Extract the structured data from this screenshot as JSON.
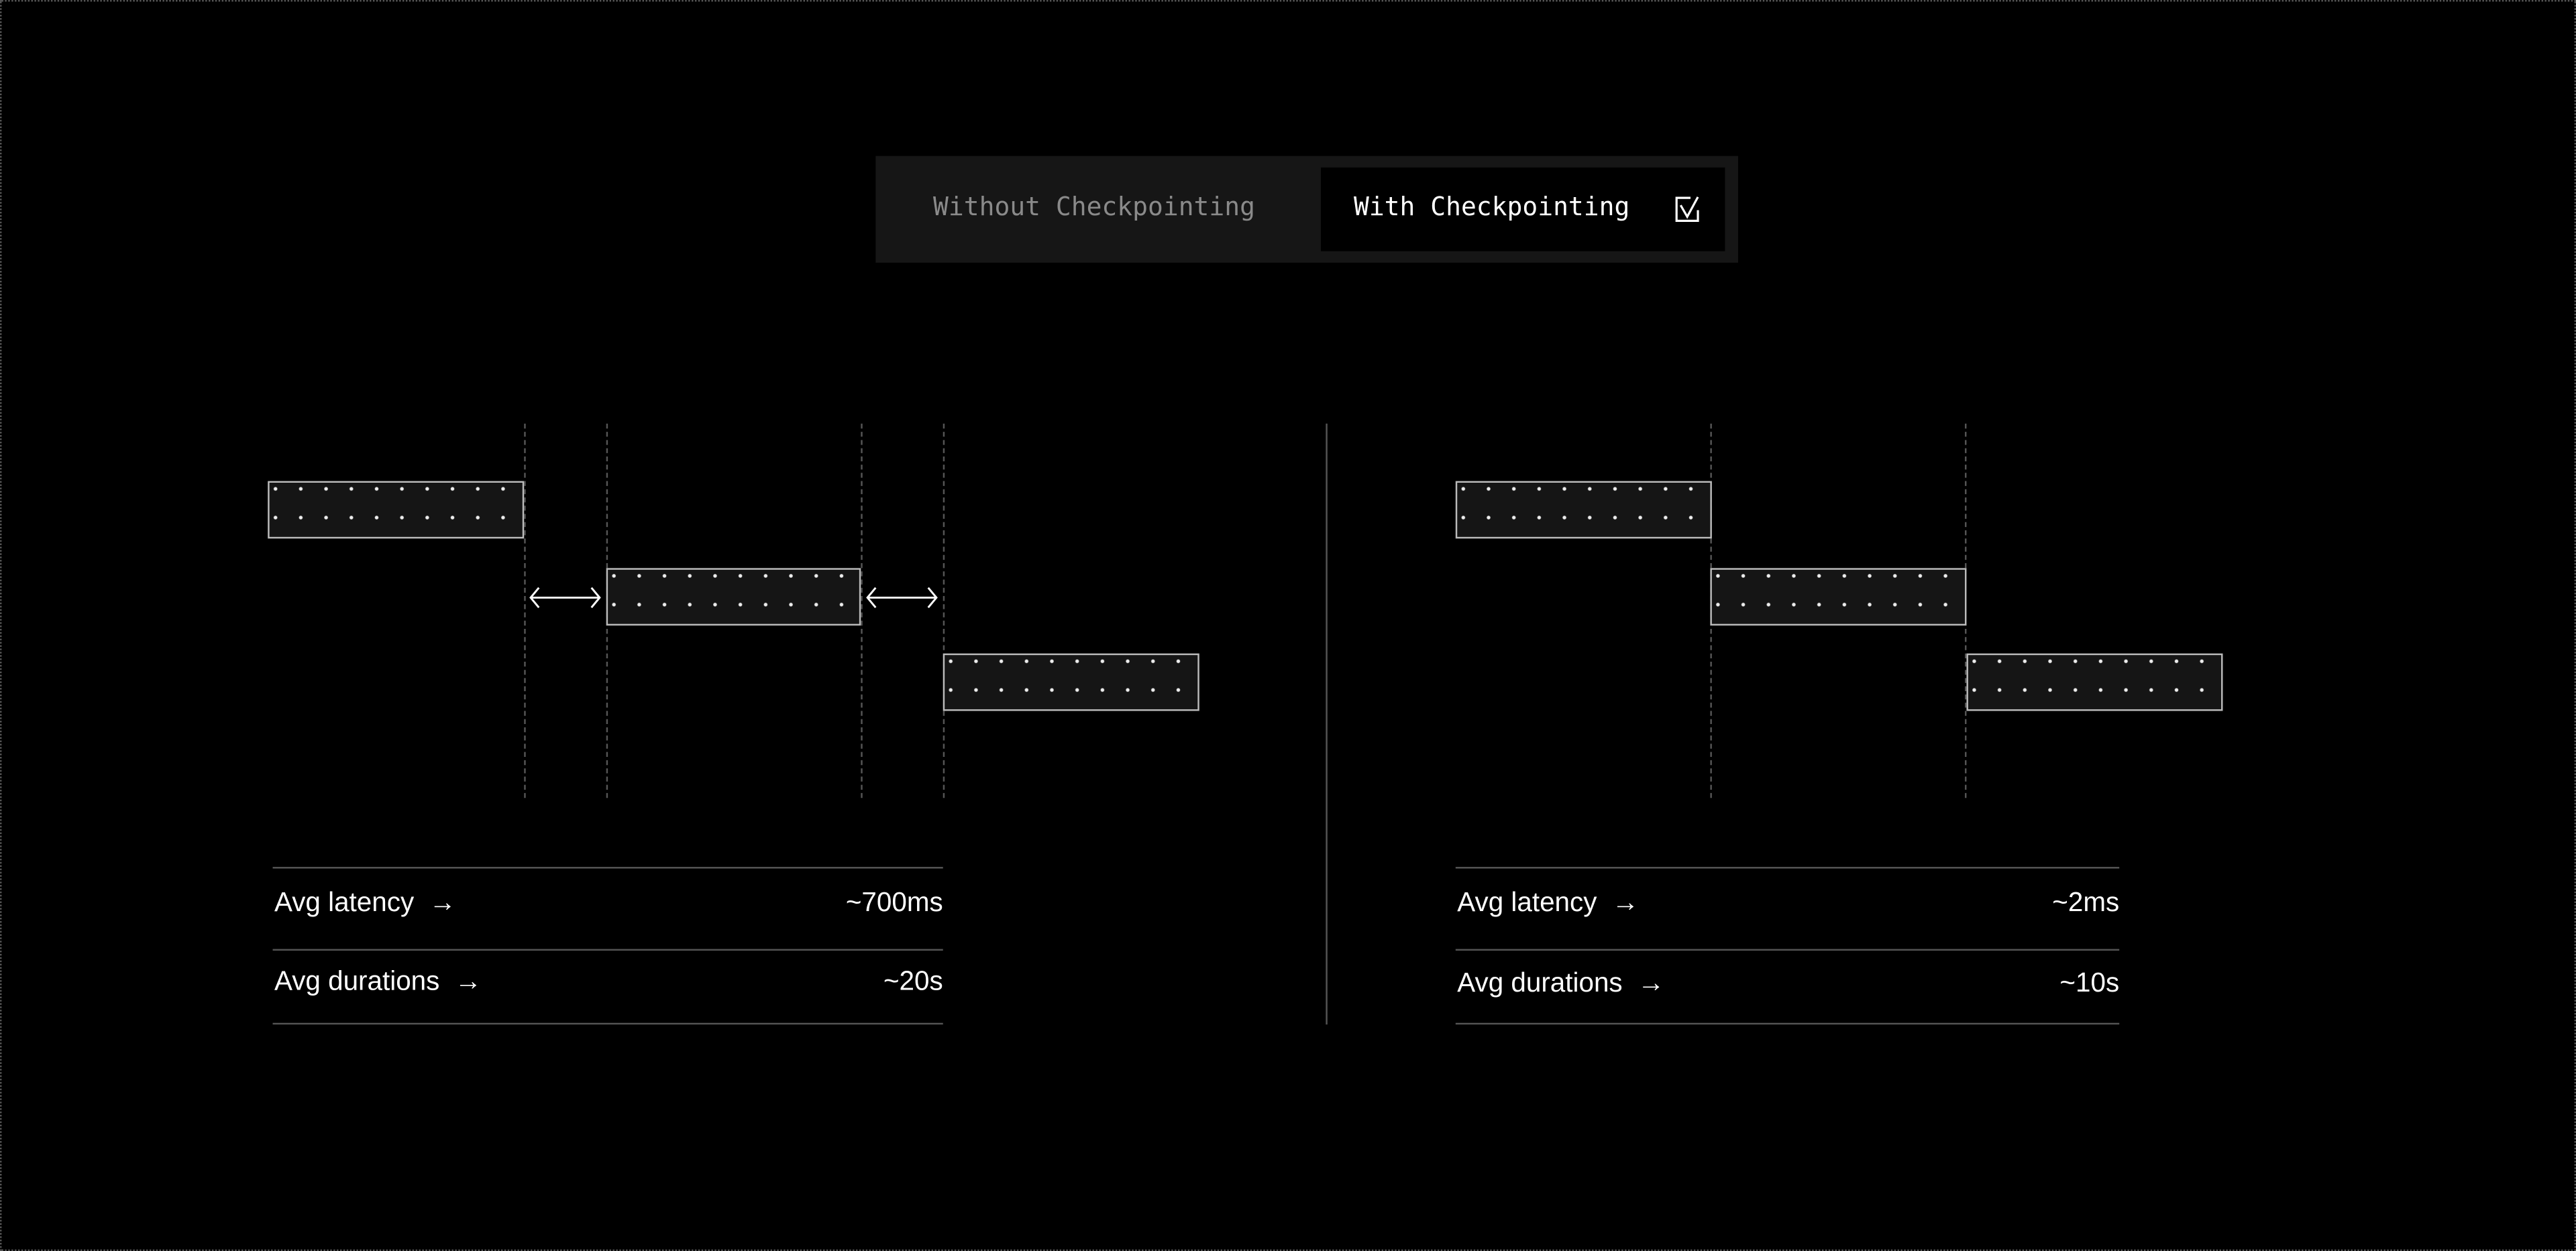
{
  "toggle": {
    "options": [
      {
        "label": "Without Checkpointing",
        "selected": false
      },
      {
        "label": "With Checkpointing",
        "selected": true
      }
    ],
    "selected_icon": "checkbox-checked-icon"
  },
  "panels": [
    {
      "stats": [
        {
          "label": "Avg latency",
          "icon": "arrow-right-icon",
          "value": "~700ms"
        },
        {
          "label": "Avg durations",
          "icon": "arrow-right-icon",
          "value": "~20s"
        }
      ],
      "gap_icon": "double-arrow-icon"
    },
    {
      "stats": [
        {
          "label": "Avg latency",
          "icon": "arrow-right-icon",
          "value": "~2ms"
        },
        {
          "label": "Avg durations",
          "icon": "arrow-right-icon",
          "value": "~10s"
        }
      ]
    }
  ],
  "colors": {
    "background": "#000000",
    "toggle_bg": "#161616",
    "bar_fill": "#151515",
    "inactive_text": "#8a8a8a"
  }
}
